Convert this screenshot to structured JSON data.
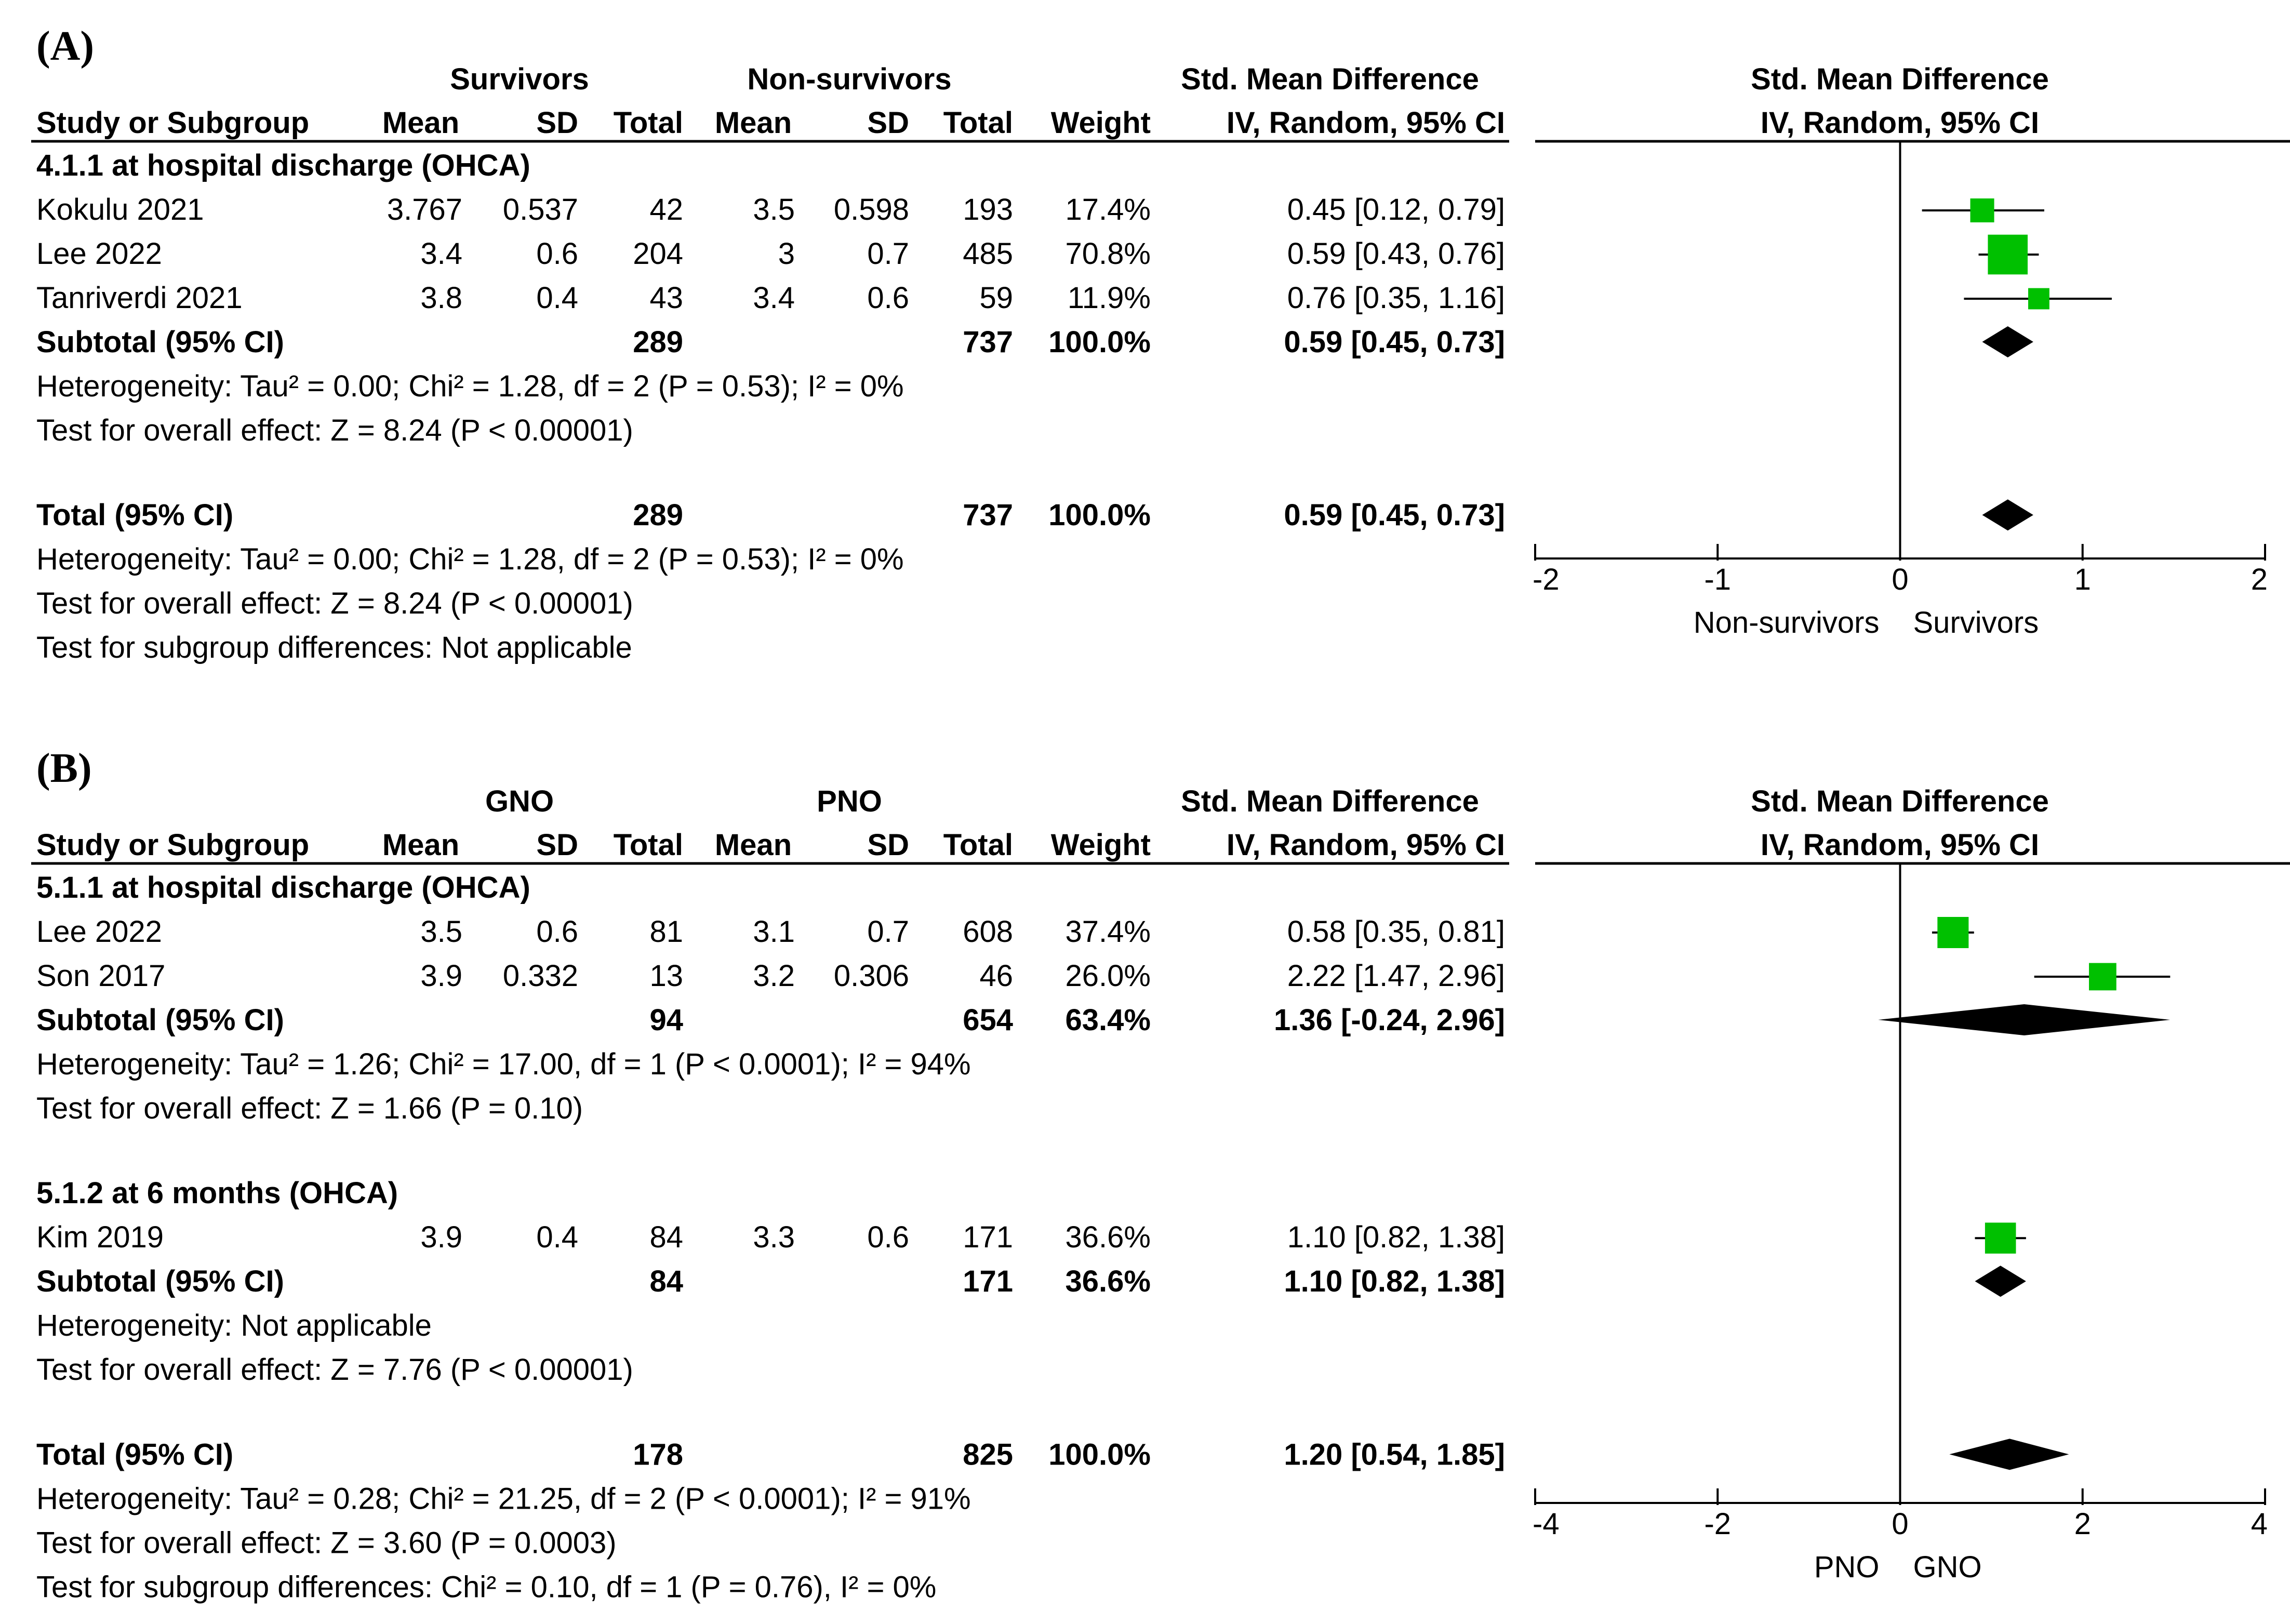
{
  "colors": {
    "square": "#00c000",
    "diamond": "#000000",
    "text": "#000000",
    "background": "#ffffff"
  },
  "panels": [
    {
      "id": "A",
      "caption": "(A)",
      "group1": "Survivors",
      "group2": "Non-survivors",
      "smd_heading": "Std. Mean Difference",
      "ci_heading": "IV, Random, 95% CI",
      "columns": [
        "Study or Subgroup",
        "Mean",
        "SD",
        "Total",
        "Mean",
        "SD",
        "Total",
        "Weight",
        "IV, Random, 95% CI"
      ],
      "lines": [
        {
          "type": "subgroup",
          "label": "4.1.1 at hospital discharge (OHCA)"
        },
        {
          "type": "study",
          "label": "Kokulu 2021",
          "mean1": "3.767",
          "sd1": "0.537",
          "n1": "42",
          "mean2": "3.5",
          "sd2": "0.598",
          "n2": "193",
          "weight": "17.4%",
          "ci": "0.45 [0.12, 0.79]",
          "est": 0.45,
          "lo": 0.12,
          "hi": 0.79,
          "w": 17.4
        },
        {
          "type": "study",
          "label": "Lee 2022",
          "mean1": "3.4",
          "sd1": "0.6",
          "n1": "204",
          "mean2": "3",
          "sd2": "0.7",
          "n2": "485",
          "weight": "70.8%",
          "ci": "0.59 [0.43, 0.76]",
          "est": 0.59,
          "lo": 0.43,
          "hi": 0.76,
          "w": 70.8
        },
        {
          "type": "study",
          "label": "Tanriverdi 2021",
          "mean1": "3.8",
          "sd1": "0.4",
          "n1": "43",
          "mean2": "3.4",
          "sd2": "0.6",
          "n2": "59",
          "weight": "11.9%",
          "ci": "0.76 [0.35, 1.16]",
          "est": 0.76,
          "lo": 0.35,
          "hi": 1.16,
          "w": 11.9
        },
        {
          "type": "subtotal",
          "label": "Subtotal (95% CI)",
          "n1": "289",
          "n2": "737",
          "weight": "100.0%",
          "ci": "0.59 [0.45, 0.73]",
          "est": 0.59,
          "lo": 0.45,
          "hi": 0.73
        },
        {
          "type": "note",
          "label": "Heterogeneity: Tau² = 0.00; Chi² = 1.28, df = 2 (P = 0.53); I² = 0%"
        },
        {
          "type": "note",
          "label": "Test for overall effect: Z = 8.24 (P < 0.00001)"
        },
        {
          "type": "blank"
        },
        {
          "type": "total",
          "label": "Total (95% CI)",
          "n1": "289",
          "n2": "737",
          "weight": "100.0%",
          "ci": "0.59 [0.45, 0.73]",
          "est": 0.59,
          "lo": 0.45,
          "hi": 0.73
        },
        {
          "type": "note",
          "label": "Heterogeneity: Tau² = 0.00; Chi² = 1.28, df = 2 (P = 0.53); I² = 0%"
        },
        {
          "type": "note",
          "label": "Test for overall effect: Z = 8.24 (P < 0.00001)"
        },
        {
          "type": "note",
          "label": "Test for subgroup differences: Not applicable"
        }
      ]
    },
    {
      "id": "B",
      "caption": "(B)",
      "group1": "GNO",
      "group2": "PNO",
      "smd_heading": "Std. Mean Difference",
      "ci_heading": "IV, Random, 95% CI",
      "columns": [
        "Study or Subgroup",
        "Mean",
        "SD",
        "Total",
        "Mean",
        "SD",
        "Total",
        "Weight",
        "IV, Random, 95% CI"
      ],
      "lines": [
        {
          "type": "subgroup",
          "label": "5.1.1 at hospital discharge (OHCA)"
        },
        {
          "type": "study",
          "label": "Lee 2022",
          "mean1": "3.5",
          "sd1": "0.6",
          "n1": "81",
          "mean2": "3.1",
          "sd2": "0.7",
          "n2": "608",
          "weight": "37.4%",
          "ci": "0.58 [0.35, 0.81]",
          "est": 0.58,
          "lo": 0.35,
          "hi": 0.81,
          "w": 37.4
        },
        {
          "type": "study",
          "label": "Son 2017",
          "mean1": "3.9",
          "sd1": "0.332",
          "n1": "13",
          "mean2": "3.2",
          "sd2": "0.306",
          "n2": "46",
          "weight": "26.0%",
          "ci": "2.22 [1.47, 2.96]",
          "est": 2.22,
          "lo": 1.47,
          "hi": 2.96,
          "w": 26.0
        },
        {
          "type": "subtotal",
          "label": "Subtotal (95% CI)",
          "n1": "94",
          "n2": "654",
          "weight": "63.4%",
          "ci": "1.36 [-0.24, 2.96]",
          "est": 1.36,
          "lo": -0.24,
          "hi": 2.96
        },
        {
          "type": "note",
          "label": "Heterogeneity: Tau² = 1.26; Chi² = 17.00, df = 1 (P < 0.0001); I² = 94%"
        },
        {
          "type": "note",
          "label": "Test for overall effect: Z = 1.66 (P = 0.10)"
        },
        {
          "type": "blank"
        },
        {
          "type": "subgroup",
          "label": "5.1.2 at 6 months (OHCA)"
        },
        {
          "type": "study",
          "label": "Kim 2019",
          "mean1": "3.9",
          "sd1": "0.4",
          "n1": "84",
          "mean2": "3.3",
          "sd2": "0.6",
          "n2": "171",
          "weight": "36.6%",
          "ci": "1.10 [0.82, 1.38]",
          "est": 1.1,
          "lo": 0.82,
          "hi": 1.38,
          "w": 36.6
        },
        {
          "type": "subtotal",
          "label": "Subtotal (95% CI)",
          "n1": "84",
          "n2": "171",
          "weight": "36.6%",
          "ci": "1.10 [0.82, 1.38]",
          "est": 1.1,
          "lo": 0.82,
          "hi": 1.38
        },
        {
          "type": "note",
          "label": "Heterogeneity: Not applicable"
        },
        {
          "type": "note",
          "label": "Test for overall effect: Z = 7.76 (P < 0.00001)"
        },
        {
          "type": "blank"
        },
        {
          "type": "total",
          "label": "Total (95% CI)",
          "n1": "178",
          "n2": "825",
          "weight": "100.0%",
          "ci": "1.20 [0.54, 1.85]",
          "est": 1.2,
          "lo": 0.54,
          "hi": 1.85
        },
        {
          "type": "note",
          "label": "Heterogeneity: Tau² = 0.28; Chi² = 21.25, df = 2 (P < 0.0001); I² = 91%"
        },
        {
          "type": "note",
          "label": "Test for overall effect: Z = 3.60 (P = 0.0003)"
        },
        {
          "type": "note",
          "label": "Test for subgroup differences: Chi² = 0.10, df = 1 (P = 0.76), I² = 0%"
        }
      ]
    }
  ],
  "chart_data": [
    {
      "type": "forest",
      "title": "(A)",
      "effect_measure": "Std. Mean Difference, IV, Random, 95% CI",
      "xlim": [
        -2,
        2
      ],
      "xticks": [
        -2,
        -1,
        0,
        1,
        2
      ],
      "xticklabels": [
        "-2",
        "-1",
        "0",
        "1",
        "2"
      ],
      "favours_left": "Non-survivors",
      "favours_right": "Survivors",
      "studies": [
        {
          "name": "Kokulu 2021",
          "smd": 0.45,
          "ci": [
            0.12,
            0.79
          ],
          "weight": 17.4
        },
        {
          "name": "Lee 2022",
          "smd": 0.59,
          "ci": [
            0.43,
            0.76
          ],
          "weight": 70.8
        },
        {
          "name": "Tanriverdi 2021",
          "smd": 0.76,
          "ci": [
            0.35,
            1.16
          ],
          "weight": 11.9
        }
      ],
      "subtotals": [
        {
          "name": "Subtotal (95% CI)",
          "smd": 0.59,
          "ci": [
            0.45,
            0.73
          ]
        }
      ],
      "total": {
        "name": "Total (95% CI)",
        "smd": 0.59,
        "ci": [
          0.45,
          0.73
        ]
      }
    },
    {
      "type": "forest",
      "title": "(B)",
      "effect_measure": "Std. Mean Difference, IV, Random, 95% CI",
      "xlim": [
        -4,
        4
      ],
      "xticks": [
        -4,
        -2,
        0,
        2,
        4
      ],
      "xticklabels": [
        "-4",
        "-2",
        "0",
        "2",
        "4"
      ],
      "favours_left": "PNO",
      "favours_right": "GNO",
      "studies": [
        {
          "name": "Lee 2022",
          "smd": 0.58,
          "ci": [
            0.35,
            0.81
          ],
          "weight": 37.4
        },
        {
          "name": "Son 2017",
          "smd": 2.22,
          "ci": [
            1.47,
            2.96
          ],
          "weight": 26.0
        },
        {
          "name": "Kim 2019",
          "smd": 1.1,
          "ci": [
            0.82,
            1.38
          ],
          "weight": 36.6
        }
      ],
      "subtotals": [
        {
          "name": "5.1.1 Subtotal (95% CI)",
          "smd": 1.36,
          "ci": [
            -0.24,
            2.96
          ]
        },
        {
          "name": "5.1.2 Subtotal (95% CI)",
          "smd": 1.1,
          "ci": [
            0.82,
            1.38
          ]
        }
      ],
      "total": {
        "name": "Total (95% CI)",
        "smd": 1.2,
        "ci": [
          0.54,
          1.85
        ]
      }
    }
  ]
}
